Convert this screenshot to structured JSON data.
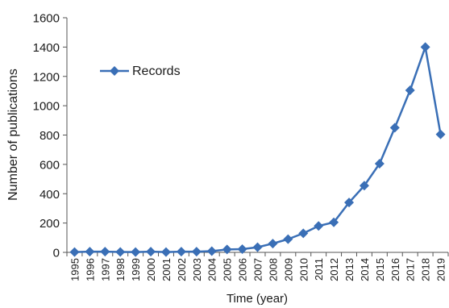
{
  "chart_data": {
    "type": "line",
    "xlabel": "Time (year)",
    "ylabel": "Number of publications",
    "ylim": [
      0,
      1600
    ],
    "yticks": [
      0,
      200,
      400,
      600,
      800,
      1000,
      1200,
      1400,
      1600
    ],
    "grid": false,
    "legend_position": "top-left",
    "categories": [
      "1995",
      "1996",
      "1997",
      "1998",
      "1999",
      "2000",
      "2001",
      "2002",
      "2003",
      "2004",
      "2005",
      "2006",
      "2007",
      "2008",
      "2009",
      "2010",
      "2011",
      "2012",
      "2013",
      "2014",
      "2015",
      "2016",
      "2017",
      "2018",
      "2019"
    ],
    "series": [
      {
        "name": "Records",
        "color": "#3a6fb6",
        "marker": "diamond",
        "values": [
          2,
          5,
          5,
          3,
          2,
          5,
          2,
          5,
          5,
          8,
          20,
          22,
          35,
          60,
          90,
          130,
          180,
          205,
          340,
          455,
          605,
          850,
          1105,
          1400,
          805
        ]
      }
    ]
  }
}
